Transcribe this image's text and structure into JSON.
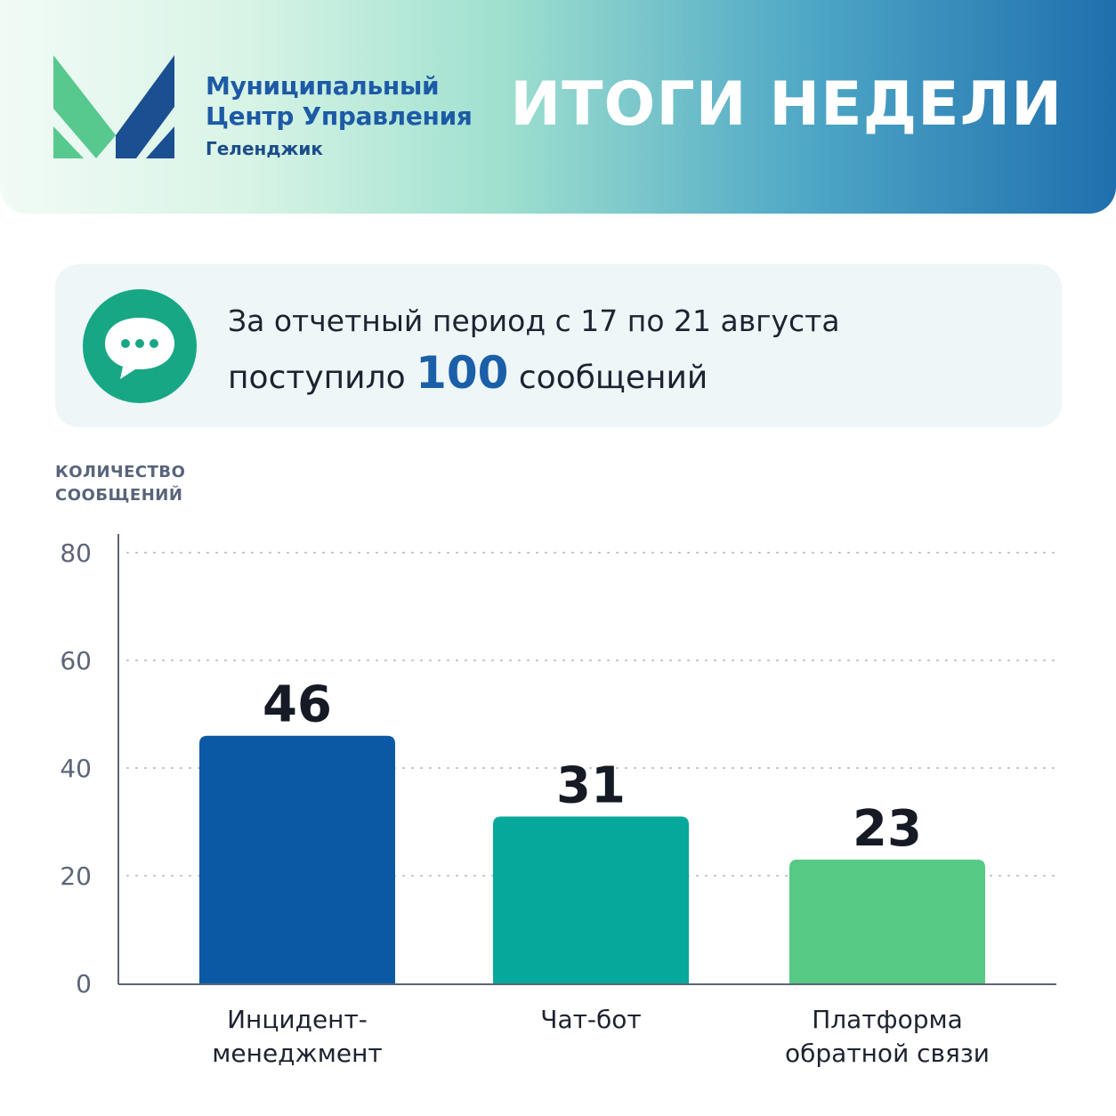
{
  "header": {
    "org_line1": "Муниципальный",
    "org_line2": "Центр Управления",
    "org_city": "Геленджик",
    "headline": "ИТОГИ НЕДЕЛИ"
  },
  "summary": {
    "line1": "За отчетный период с 17 по 21 августа",
    "prefix": "поступило",
    "number": "100",
    "suffix": "сообщений",
    "icon": "chat-bubble-icon"
  },
  "colors": {
    "bar1": "#0b59a5",
    "bar2": "#05a89a",
    "bar3": "#56c985",
    "accent": "#1a5fa8"
  },
  "chart_data": {
    "type": "bar",
    "ylabel": "КОЛИЧЕСТВО\nСООБЩЕНИЙ",
    "categories": [
      "Инцидент-\nменеджмент",
      "Чат-бот",
      "Платформа\nобратной связи"
    ],
    "values": [
      46,
      31,
      23
    ],
    "yticks": [
      0,
      20,
      40,
      60,
      80
    ],
    "ylim": [
      0,
      80
    ],
    "grid": true
  }
}
